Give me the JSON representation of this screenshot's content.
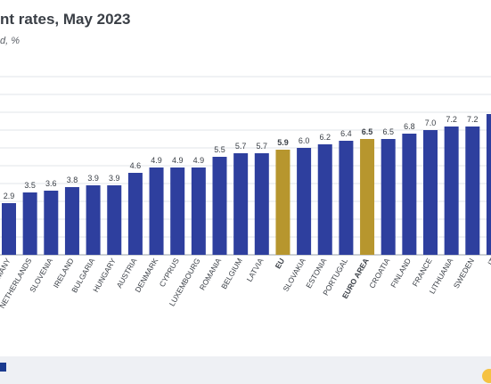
{
  "header": {
    "title": "nt rates, May 2023",
    "subtitle": "d, %"
  },
  "colors": {
    "bar": "#2e3f9e",
    "highlight": "#b7962e",
    "grid": "#d9dce3",
    "text": "#3a3f46"
  },
  "chart_data": {
    "type": "bar",
    "title": "nt rates, May 2023",
    "subtitle": "d, %",
    "categories": [
      "GERMANY",
      "NETHERLANDS",
      "SLOVENIA",
      "IRELAND",
      "BULGARIA",
      "HUNGARY",
      "AUSTRIA",
      "DENMARK",
      "CYPRUS",
      "LUXEMBOURG",
      "ROMANIA",
      "BELGIUM",
      "LATVIA",
      "EU",
      "SLOVAKIA",
      "ESTONIA",
      "PORTUGAL",
      "EURO AREA",
      "CROATIA",
      "FINLAND",
      "FRANCE",
      "LITHUANIA",
      "SWEDEN",
      "IT"
    ],
    "values": [
      2.9,
      3.5,
      3.6,
      3.8,
      3.9,
      3.9,
      4.6,
      4.9,
      4.9,
      4.9,
      5.5,
      5.7,
      5.7,
      5.9,
      6.0,
      6.2,
      6.4,
      6.5,
      6.5,
      6.8,
      7.0,
      7.2,
      7.2,
      7.9
    ],
    "value_labels": [
      "2.9",
      "3.5",
      "3.6",
      "3.8",
      "3.9",
      "3.9",
      "4.6",
      "4.9",
      "4.9",
      "4.9",
      "5.5",
      "5.7",
      "5.7",
      "5.9",
      "6.0",
      "6.2",
      "6.4",
      "6.5",
      "6.5",
      "6.8",
      "7.0",
      "7.2",
      "7.2",
      ""
    ],
    "highlighted": [
      "EU",
      "EURO AREA"
    ],
    "ylim": [
      0,
      11
    ],
    "grid": true,
    "xlabel": "",
    "ylabel": ""
  }
}
